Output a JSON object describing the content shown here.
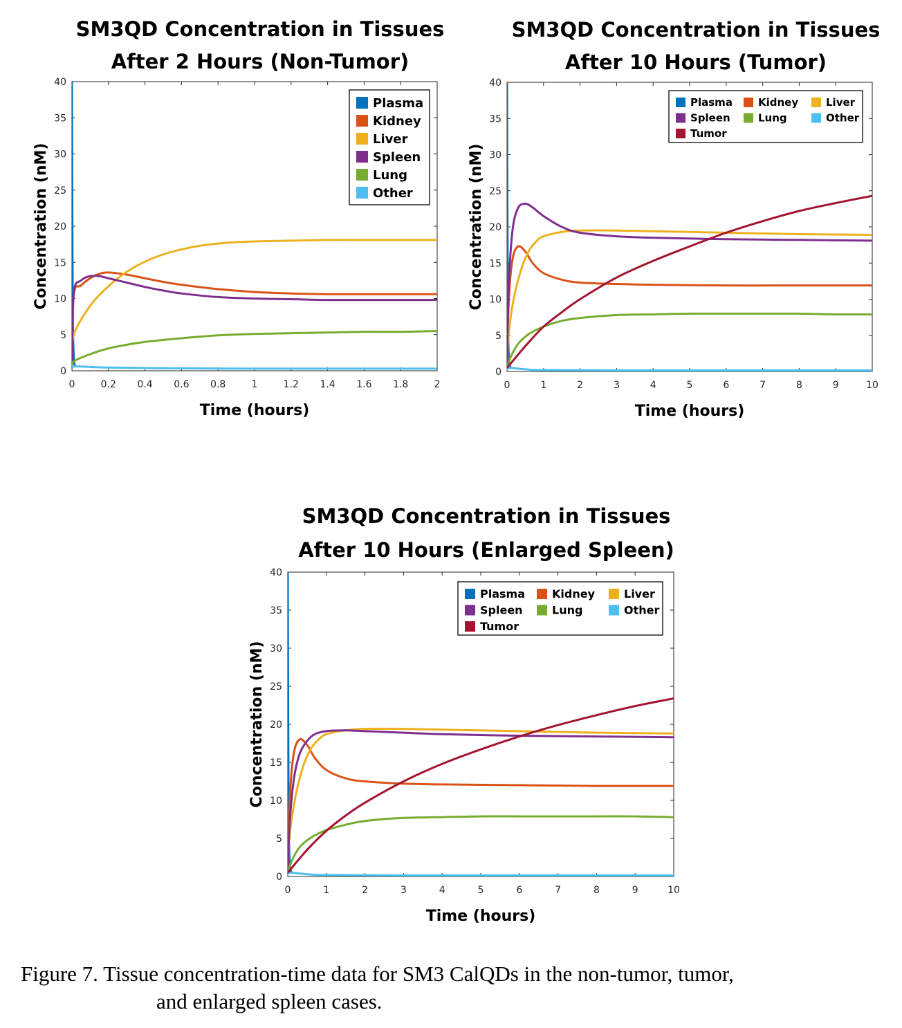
{
  "chart_data": [
    {
      "type": "line",
      "title": [
        "SM3QD Concentration in Tissues",
        "After 2 Hours (Non-Tumor)"
      ],
      "xlabel": "Time (hours)",
      "ylabel": "Concentration (nM)",
      "xlim": [
        0,
        2
      ],
      "ylim": [
        0,
        40
      ],
      "xticks": [
        "0",
        "0.2",
        "0.4",
        "0.6",
        "0.8",
        "1",
        "1.2",
        "1.4",
        "1.6",
        "1.8",
        "2"
      ],
      "yticks": [
        "0",
        "5",
        "10",
        "15",
        "20",
        "25",
        "30",
        "35",
        "40"
      ],
      "legend_position": "top-right",
      "legend_columns": 1,
      "series": [
        {
          "name": "Plasma",
          "color": "#0072BD",
          "x": [
            0,
            0.004,
            0.01,
            0.02
          ],
          "y": [
            40,
            10,
            2,
            0.5
          ]
        },
        {
          "name": "Kidney",
          "color": "#D95319",
          "x": [
            0,
            0.01,
            0.05,
            0.1,
            0.15,
            0.2,
            0.3,
            0.4,
            0.5,
            0.6,
            0.8,
            1.0,
            1.2,
            1.4,
            1.6,
            1.8,
            2.0
          ],
          "y": [
            1,
            10.5,
            11.8,
            12.8,
            13.4,
            13.6,
            13.3,
            12.8,
            12.3,
            11.9,
            11.3,
            10.9,
            10.7,
            10.6,
            10.6,
            10.6,
            10.6
          ]
        },
        {
          "name": "Liver",
          "color": "#EDB120",
          "x": [
            0,
            0.01,
            0.1,
            0.2,
            0.3,
            0.4,
            0.5,
            0.6,
            0.7,
            0.8,
            0.9,
            1.0,
            1.2,
            1.4,
            1.6,
            1.8,
            2.0
          ],
          "y": [
            1,
            5.0,
            9.0,
            11.7,
            13.7,
            15.1,
            16.1,
            16.8,
            17.3,
            17.6,
            17.8,
            17.9,
            18.0,
            18.1,
            18.1,
            18.1,
            18.1
          ]
        },
        {
          "name": "Spleen",
          "color": "#7E2F8E",
          "x": [
            0,
            0.01,
            0.05,
            0.1,
            0.15,
            0.2,
            0.3,
            0.4,
            0.5,
            0.6,
            0.8,
            1.0,
            1.2,
            1.4,
            1.6,
            1.8,
            2.0
          ],
          "y": [
            1,
            10.8,
            12.5,
            13.1,
            13.1,
            12.8,
            12.2,
            11.6,
            11.1,
            10.7,
            10.2,
            10.0,
            9.9,
            9.8,
            9.8,
            9.8,
            9.8
          ]
        },
        {
          "name": "Lung",
          "color": "#77AC30",
          "x": [
            0,
            0.01,
            0.1,
            0.2,
            0.3,
            0.4,
            0.6,
            0.8,
            1.0,
            1.2,
            1.4,
            1.6,
            1.8,
            2.0
          ],
          "y": [
            0.3,
            1.3,
            2.3,
            3.1,
            3.6,
            4.0,
            4.5,
            4.9,
            5.1,
            5.2,
            5.3,
            5.4,
            5.4,
            5.5
          ]
        },
        {
          "name": "Other",
          "color": "#4DBEEE",
          "x": [
            0,
            0.01,
            0.2,
            0.5,
            1.0,
            1.5,
            2.0
          ],
          "y": [
            0.2,
            0.6,
            0.45,
            0.35,
            0.3,
            0.3,
            0.3
          ]
        }
      ]
    },
    {
      "type": "line",
      "title": [
        "SM3QD Concentration in Tissues",
        "After 10 Hours (Tumor)"
      ],
      "xlabel": "Time (hours)",
      "ylabel": "Concentration (nM)",
      "xlim": [
        0,
        10
      ],
      "ylim": [
        0,
        40
      ],
      "xticks": [
        "0",
        "1",
        "2",
        "3",
        "4",
        "5",
        "6",
        "7",
        "8",
        "9",
        "10"
      ],
      "yticks": [
        "0",
        "5",
        "10",
        "15",
        "20",
        "25",
        "30",
        "35",
        "40"
      ],
      "legend_position": "top-right",
      "legend_columns": 3,
      "series": [
        {
          "name": "Plasma",
          "color": "#0072BD",
          "x": [
            0,
            0.02,
            0.05,
            0.1
          ],
          "y": [
            40,
            10,
            2,
            0.5
          ]
        },
        {
          "name": "Kidney",
          "color": "#D95319",
          "x": [
            0,
            0.05,
            0.15,
            0.3,
            0.5,
            0.7,
            1.0,
            1.5,
            2.0,
            3.0,
            4.0,
            6.0,
            8.0,
            10.0
          ],
          "y": [
            1,
            10,
            15.5,
            17.3,
            16.6,
            15.0,
            13.6,
            12.7,
            12.3,
            12.1,
            12.0,
            11.9,
            11.9,
            11.9
          ]
        },
        {
          "name": "Liver",
          "color": "#EDB120",
          "x": [
            0,
            0.05,
            0.2,
            0.4,
            0.6,
            0.8,
            1.0,
            1.5,
            2.0,
            3.0,
            4.0,
            6.0,
            8.0,
            10.0
          ],
          "y": [
            1,
            5.5,
            10.5,
            14.3,
            16.7,
            18.0,
            18.7,
            19.3,
            19.5,
            19.5,
            19.4,
            19.2,
            19.0,
            18.9
          ]
        },
        {
          "name": "Spleen",
          "color": "#7E2F8E",
          "x": [
            0,
            0.05,
            0.15,
            0.3,
            0.5,
            0.7,
            1.0,
            1.5,
            2.0,
            3.0,
            4.0,
            6.0,
            8.0,
            10.0
          ],
          "y": [
            1,
            12,
            19.5,
            22.6,
            23.2,
            22.7,
            21.5,
            20.0,
            19.2,
            18.7,
            18.5,
            18.3,
            18.2,
            18.1
          ]
        },
        {
          "name": "Lung",
          "color": "#77AC30",
          "x": [
            0,
            0.1,
            0.3,
            0.6,
            1.0,
            1.5,
            2.0,
            3.0,
            4.0,
            5.0,
            6.0,
            7.0,
            8.0,
            9.0,
            10.0
          ],
          "y": [
            0.5,
            2.0,
            3.8,
            5.2,
            6.2,
            7.0,
            7.4,
            7.8,
            7.9,
            8.0,
            8.0,
            8.0,
            8.0,
            7.9,
            7.9
          ]
        },
        {
          "name": "Other",
          "color": "#4DBEEE",
          "x": [
            0,
            0.05,
            0.5,
            1.0,
            3.0,
            6.0,
            10.0
          ],
          "y": [
            0.2,
            0.5,
            0.3,
            0.2,
            0.15,
            0.15,
            0.15
          ]
        },
        {
          "name": "Tumor",
          "color": "#A2142F",
          "x": [
            0,
            0.5,
            1.0,
            1.5,
            2.0,
            3.0,
            4.0,
            5.0,
            6.0,
            7.0,
            8.0,
            9.0,
            10.0
          ],
          "y": [
            0.5,
            3.5,
            6.2,
            8.2,
            10.0,
            13.0,
            15.3,
            17.3,
            19.2,
            20.8,
            22.2,
            23.3,
            24.3
          ]
        }
      ]
    },
    {
      "type": "line",
      "title": [
        "SM3QD Concentration in Tissues",
        "After 10 Hours (Enlarged Spleen)"
      ],
      "xlabel": "Time (hours)",
      "ylabel": "Concentration (nM)",
      "xlim": [
        0,
        10
      ],
      "ylim": [
        0,
        40
      ],
      "xticks": [
        "0",
        "1",
        "2",
        "3",
        "4",
        "5",
        "6",
        "7",
        "8",
        "9",
        "10"
      ],
      "yticks": [
        "0",
        "5",
        "10",
        "15",
        "20",
        "25",
        "30",
        "35",
        "40"
      ],
      "legend_position": "top-right",
      "legend_columns": 3,
      "series": [
        {
          "name": "Plasma",
          "color": "#0072BD",
          "x": [
            0,
            0.02,
            0.05,
            0.1
          ],
          "y": [
            40,
            10,
            2,
            0.5
          ]
        },
        {
          "name": "Kidney",
          "color": "#D95319",
          "x": [
            0,
            0.05,
            0.15,
            0.3,
            0.5,
            0.7,
            1.0,
            1.5,
            2.0,
            3.0,
            4.0,
            6.0,
            8.0,
            10.0
          ],
          "y": [
            1,
            10,
            16,
            18.0,
            17.3,
            15.6,
            14.0,
            12.9,
            12.5,
            12.2,
            12.1,
            12.0,
            11.9,
            11.9
          ]
        },
        {
          "name": "Liver",
          "color": "#EDB120",
          "x": [
            0,
            0.05,
            0.2,
            0.4,
            0.6,
            0.8,
            1.0,
            1.5,
            2.0,
            3.0,
            4.0,
            6.0,
            8.0,
            10.0
          ],
          "y": [
            1,
            5.5,
            10.5,
            14.5,
            16.8,
            18.0,
            18.7,
            19.2,
            19.4,
            19.4,
            19.3,
            19.1,
            18.9,
            18.8
          ]
        },
        {
          "name": "Spleen",
          "color": "#7E2F8E",
          "x": [
            0,
            0.05,
            0.15,
            0.3,
            0.5,
            0.7,
            1.0,
            1.5,
            2.0,
            3.0,
            4.0,
            6.0,
            8.0,
            10.0
          ],
          "y": [
            1,
            7,
            12.5,
            16.0,
            17.8,
            18.7,
            19.1,
            19.2,
            19.1,
            18.9,
            18.7,
            18.5,
            18.4,
            18.3
          ]
        },
        {
          "name": "Lung",
          "color": "#77AC30",
          "x": [
            0,
            0.1,
            0.3,
            0.6,
            1.0,
            1.5,
            2.0,
            3.0,
            4.0,
            5.0,
            6.0,
            7.0,
            8.0,
            9.0,
            10.0
          ],
          "y": [
            0.5,
            2.0,
            3.8,
            5.1,
            6.1,
            6.8,
            7.3,
            7.7,
            7.8,
            7.9,
            7.9,
            7.9,
            7.9,
            7.9,
            7.8
          ]
        },
        {
          "name": "Other",
          "color": "#4DBEEE",
          "x": [
            0,
            0.05,
            0.5,
            1.0,
            3.0,
            6.0,
            10.0
          ],
          "y": [
            0.2,
            0.5,
            0.3,
            0.2,
            0.15,
            0.15,
            0.15
          ]
        },
        {
          "name": "Tumor",
          "color": "#A2142F",
          "x": [
            0,
            0.5,
            1.0,
            1.5,
            2.0,
            3.0,
            4.0,
            5.0,
            6.0,
            7.0,
            8.0,
            9.0,
            10.0
          ],
          "y": [
            0.5,
            3.5,
            6.0,
            8.0,
            9.7,
            12.5,
            14.8,
            16.7,
            18.4,
            19.9,
            21.2,
            22.4,
            23.4
          ]
        }
      ]
    }
  ],
  "caption": {
    "line1": "Figure 7. Tissue concentration-time data for SM3 CalQDs in the non-tumor, tumor,",
    "line2": "and enlarged spleen cases."
  }
}
